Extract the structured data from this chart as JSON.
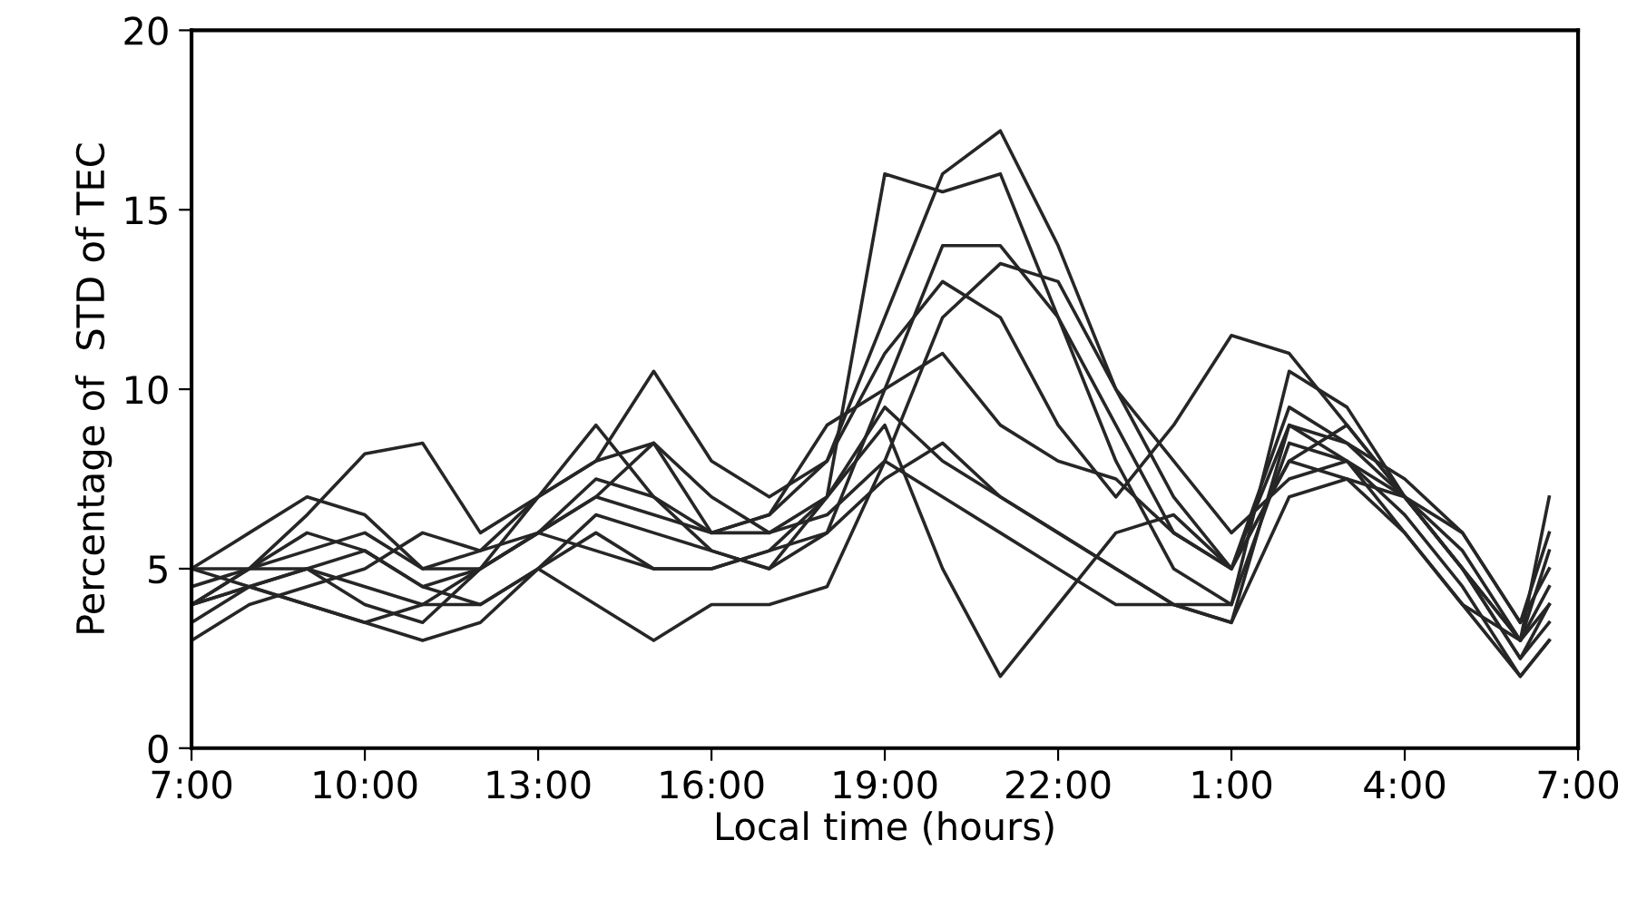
{
  "chart_data": {
    "type": "line",
    "xlabel": "Local time (hours)",
    "ylabel": "Percentage of  STD of TEC",
    "x": [
      "2000-01-01T07:00",
      "2000-01-01T08:00",
      "2000-01-01T09:00",
      "2000-01-01T10:00",
      "2000-01-01T11:00",
      "2000-01-01T12:00",
      "2000-01-01T13:00",
      "2000-01-01T14:00",
      "2000-01-01T15:00",
      "2000-01-01T16:00",
      "2000-01-01T17:00",
      "2000-01-01T18:00",
      "2000-01-01T19:00",
      "2000-01-01T20:00",
      "2000-01-01T21:00",
      "2000-01-01T22:00",
      "2000-01-01T23:00",
      "2000-01-02T00:00",
      "2000-01-02T01:00",
      "2000-01-02T02:00",
      "2000-01-02T03:00",
      "2000-01-02T04:00",
      "2000-01-02T05:00",
      "2000-01-02T06:00",
      "2000-01-02T06:30"
    ],
    "xlim": [
      "2000-01-01T07:00",
      "2000-01-02T07:00"
    ],
    "xticks": [
      {
        "value": "2000-01-01T07:00",
        "label": "7:00"
      },
      {
        "value": "2000-01-01T10:00",
        "label": "10:00"
      },
      {
        "value": "2000-01-01T13:00",
        "label": "13:00"
      },
      {
        "value": "2000-01-01T16:00",
        "label": "16:00"
      },
      {
        "value": "2000-01-01T19:00",
        "label": "19:00"
      },
      {
        "value": "2000-01-01T22:00",
        "label": "22:00"
      },
      {
        "value": "2000-01-02T01:00",
        "label": "1:00"
      },
      {
        "value": "2000-01-02T04:00",
        "label": "4:00"
      },
      {
        "value": "2000-01-02T07:00",
        "label": "7:00"
      }
    ],
    "ylim": [
      0,
      20
    ],
    "yticks": [
      0,
      5,
      10,
      15,
      20
    ],
    "grid": false,
    "marker": "none",
    "line_style": "solid",
    "series": [
      {
        "color": "#262626",
        "values": [
          4.5,
          5,
          6,
          5.5,
          4.5,
          5,
          6,
          7,
          6.5,
          6,
          6.5,
          8,
          12,
          16,
          17.2,
          14,
          10,
          7,
          5,
          8,
          9,
          7,
          5,
          2.5,
          3.5
        ]
      },
      {
        "color": "#262626",
        "values": [
          4,
          5,
          6.5,
          8.2,
          8.5,
          6,
          7,
          8,
          8.5,
          7,
          6,
          7,
          16,
          15.5,
          16,
          12,
          9,
          6,
          5,
          9,
          8,
          6,
          4,
          3,
          4.5
        ]
      },
      {
        "color": "#262626",
        "values": [
          3.5,
          4.5,
          5,
          4,
          3.5,
          5,
          7,
          9,
          7,
          5.5,
          5,
          6,
          10,
          14,
          14,
          12,
          8,
          5,
          4,
          10.5,
          9.5,
          7,
          5,
          3,
          5.5
        ]
      },
      {
        "color": "#262626",
        "values": [
          5,
          4.5,
          4,
          3.5,
          4,
          5,
          6,
          5.5,
          5,
          5,
          5.5,
          7,
          9,
          5,
          2,
          4,
          6,
          6.5,
          5,
          8,
          7.5,
          6,
          4,
          2,
          3
        ]
      },
      {
        "color": "#262626",
        "values": [
          4,
          4.5,
          4,
          3.5,
          3,
          3.5,
          5,
          4,
          3,
          4,
          4,
          4.5,
          8,
          7,
          6,
          5,
          4,
          4,
          4,
          8.5,
          8,
          6.5,
          4.5,
          2,
          3
        ]
      },
      {
        "color": "#262626",
        "values": [
          5,
          6,
          7,
          6.5,
          5,
          5.5,
          7,
          8,
          10.5,
          8,
          7,
          8,
          11,
          13,
          12,
          9,
          7,
          9,
          11.5,
          11,
          9,
          7,
          5,
          3,
          7
        ]
      },
      {
        "color": "#262626",
        "values": [
          4,
          5,
          5,
          4.5,
          4,
          4,
          5,
          6.5,
          6,
          5.5,
          5,
          7,
          9.5,
          8,
          7,
          6,
          5,
          4,
          3.5,
          9,
          8.5,
          7.5,
          6,
          3.5,
          6
        ]
      },
      {
        "color": "#262626",
        "values": [
          3,
          4,
          4.5,
          5,
          6,
          5.5,
          6,
          7,
          8.5,
          6,
          6,
          6.5,
          8,
          12,
          13.5,
          13,
          10,
          8,
          6,
          7.5,
          8,
          7,
          5.5,
          3,
          4
        ]
      },
      {
        "color": "#262626",
        "values": [
          5,
          5,
          5.5,
          6,
          5,
          5,
          6,
          7.5,
          7,
          6,
          6.5,
          9,
          10,
          11,
          9,
          8,
          7.5,
          6,
          5,
          9.5,
          8.5,
          7,
          5,
          2.5,
          4
        ]
      },
      {
        "color": "#262626",
        "values": [
          4,
          4.5,
          5,
          5.5,
          4.5,
          4,
          5,
          6,
          5,
          5,
          5.5,
          6,
          7.5,
          8.5,
          7,
          6,
          5,
          4,
          3.5,
          7,
          7.5,
          7,
          6,
          3.5,
          5
        ]
      }
    ]
  }
}
